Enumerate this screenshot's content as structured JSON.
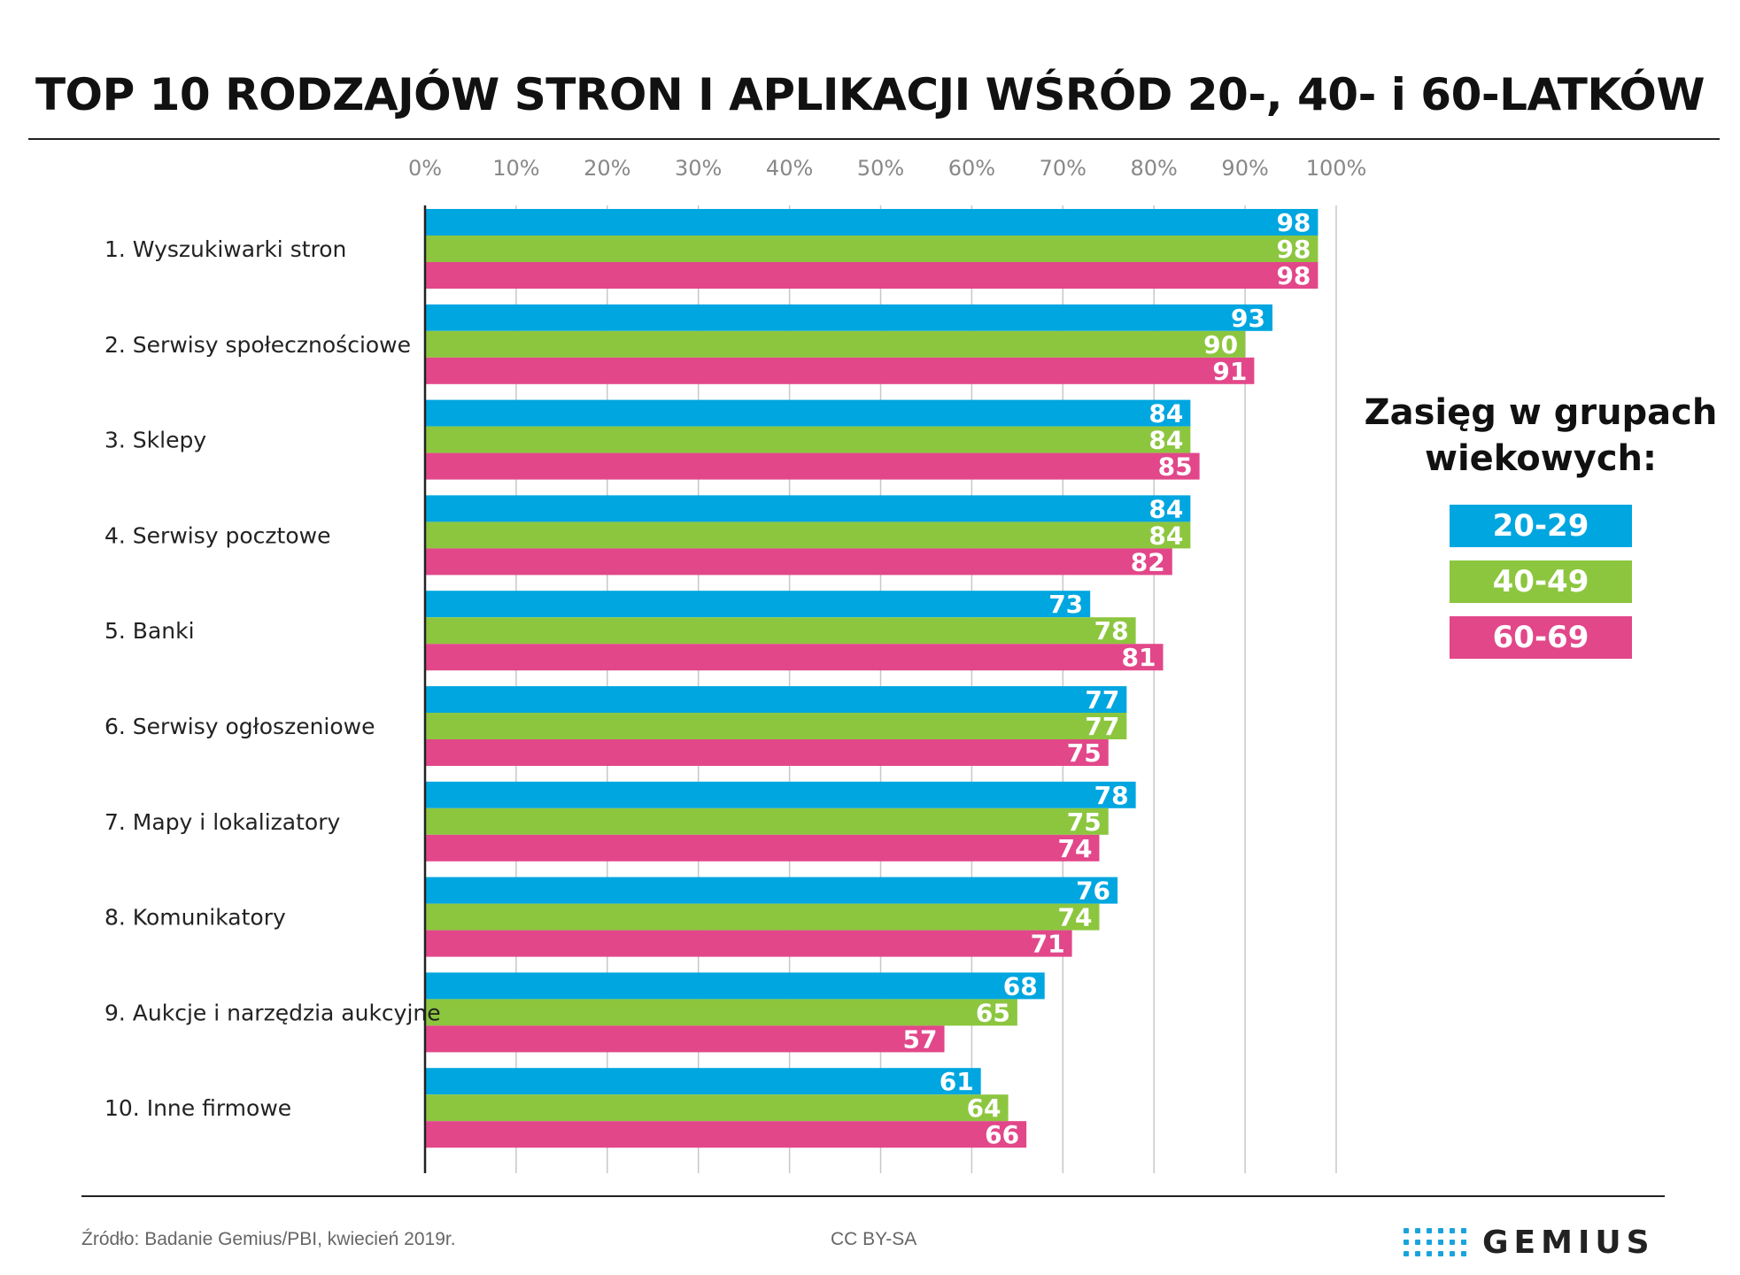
{
  "title": "TOP 10 RODZAJÓW STRON I APLIKACJI WŚRÓD 20-, 40- i 60-LATKÓW",
  "chart_data": {
    "type": "bar",
    "orientation": "horizontal",
    "title": "TOP 10 RODZAJÓW STRON I APLIKACJI WŚRÓD 20-, 40- i 60-LATKÓW",
    "xlabel": "",
    "ylabel": "",
    "xlim": [
      0,
      100
    ],
    "ticks": [
      "0%",
      "10%",
      "20%",
      "30%",
      "40%",
      "50%",
      "60%",
      "70%",
      "80%",
      "90%",
      "100%"
    ],
    "tick_values": [
      0,
      10,
      20,
      30,
      40,
      50,
      60,
      70,
      80,
      90,
      100
    ],
    "grid": true,
    "legend_position": "right",
    "categories": [
      "1. Wyszukiwarki stron",
      "2. Serwisy społecznościowe",
      "3. Sklepy",
      "4. Serwisy pocztowe",
      "5. Banki",
      "6. Serwisy ogłoszeniowe",
      "7. Mapy i lokalizatory",
      "8. Komunikatory",
      "9. Aukcje i narzędzia aukcyjne",
      "10. Inne firmowe"
    ],
    "series": [
      {
        "name": "20-29",
        "color": "#00a6e0",
        "values": [
          98,
          93,
          84,
          84,
          73,
          77,
          78,
          76,
          68,
          61
        ]
      },
      {
        "name": "40-49",
        "color": "#8cc63f",
        "values": [
          98,
          90,
          84,
          84,
          78,
          77,
          75,
          74,
          65,
          64
        ]
      },
      {
        "name": "60-69",
        "color": "#e2478a",
        "values": [
          98,
          91,
          85,
          82,
          81,
          75,
          74,
          71,
          57,
          66
        ]
      }
    ]
  },
  "legend": {
    "title_line1": "Zasięg w grupach",
    "title_line2": "wiekowych:",
    "items": [
      {
        "label": "20-29",
        "color": "#00a6e0"
      },
      {
        "label": "40-49",
        "color": "#8cc63f"
      },
      {
        "label": "60-69",
        "color": "#e2478a"
      }
    ]
  },
  "footer": {
    "source": "Źródło: Badanie Gemius/PBI, kwiecień 2019r.",
    "license": "CC BY-SA",
    "logo_text": "GEMIUS"
  }
}
